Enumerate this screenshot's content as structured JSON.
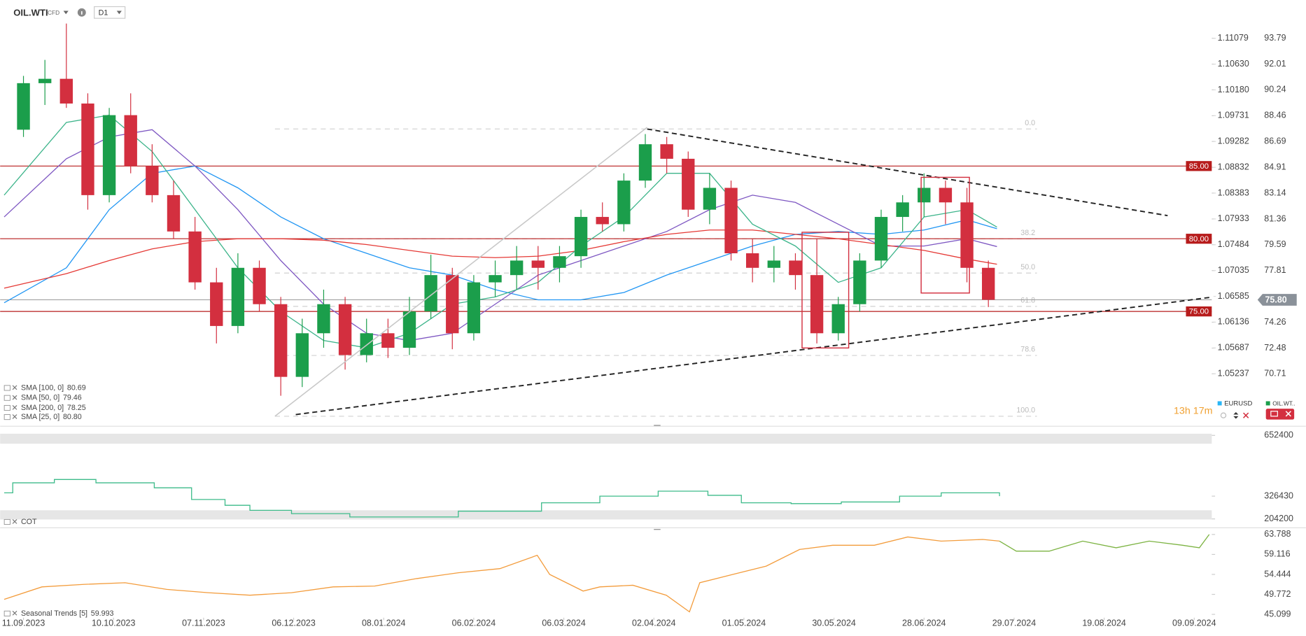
{
  "toolbar": {
    "symbol": "OIL.WTI",
    "badge": "CFD",
    "interval": "D1"
  },
  "countdown": "13h 17m",
  "instrument_legend": [
    {
      "name": "EURUSD",
      "color": "#29b6f6"
    },
    {
      "name": "OIL.WT..",
      "color": "#1b9e4b"
    }
  ],
  "chart_data": [
    {
      "type": "candlestick",
      "xlim": [
        -5.44,
        277.09
      ],
      "ylim": [
        67.22,
        96.42
      ],
      "yticks": [
        93.79,
        92.01,
        90.24,
        88.46,
        86.69,
        84.91,
        83.14,
        81.36,
        79.59,
        77.81,
        74.26,
        72.48,
        70.71
      ],
      "y2lim": [
        1.04352,
        1.11746
      ],
      "y2ticks": [
        1.11079,
        {
          "value": 1.1063,
          "label": "1.10630"
        },
        {
          "value": 1.1018,
          "label": "1.10180"
        },
        1.09731,
        1.09282,
        1.08832,
        1.08383,
        1.07933,
        1.07484,
        1.07035,
        1.06585,
        1.06136,
        1.05687,
        1.05237
      ],
      "candles": {
        "up_color": "#1b9e4b",
        "down_color": "#d32f3f",
        "x": [
          0,
          5,
          10,
          15,
          20,
          25,
          30,
          35,
          40,
          45,
          50,
          55,
          60,
          65,
          70,
          75,
          80,
          85,
          90,
          95,
          100,
          105,
          110,
          115,
          120,
          125,
          130,
          135,
          140,
          145,
          150,
          155,
          160,
          165,
          170,
          175,
          180,
          185,
          190,
          195,
          200,
          205,
          210,
          215,
          220,
          225
        ],
        "open": [
          87.5,
          90.7,
          91.0,
          89.3,
          83.0,
          88.5,
          85.0,
          83.0,
          80.5,
          77.0,
          74.0,
          78.0,
          75.5,
          70.5,
          73.5,
          75.5,
          72.0,
          73.5,
          72.5,
          75.0,
          77.5,
          73.5,
          77.0,
          77.5,
          78.5,
          78.0,
          78.8,
          81.5,
          81.0,
          84.0,
          86.5,
          85.5,
          82.0,
          83.5,
          79.0,
          78.0,
          78.5,
          77.5,
          73.5,
          75.5,
          78.5,
          81.5,
          82.5,
          83.5,
          82.5,
          78.0
        ],
        "high": [
          91.2,
          92.3,
          94.8,
          90.0,
          89.0,
          90.0,
          86.5,
          84.0,
          81.5,
          78.0,
          79.0,
          78.5,
          76.0,
          74.5,
          76.5,
          76.0,
          74.5,
          74.5,
          76.0,
          78.9,
          78.0,
          77.5,
          78.5,
          79.5,
          79.5,
          79.5,
          82.0,
          82.5,
          84.5,
          87.2,
          87.0,
          86.0,
          84.5,
          84.0,
          80.0,
          79.5,
          79.0,
          80.0,
          76.0,
          79.0,
          82.0,
          83.0,
          84.5,
          84.0,
          83.5,
          78.5
        ],
        "low": [
          87.0,
          89.2,
          89.0,
          82.0,
          82.5,
          84.5,
          82.5,
          80.0,
          76.5,
          72.8,
          73.5,
          75.0,
          69.2,
          69.8,
          72.5,
          71.0,
          71.5,
          71.8,
          72.0,
          74.5,
          72.4,
          73.0,
          76.0,
          76.5,
          76.5,
          77.0,
          78.0,
          80.5,
          80.5,
          83.5,
          84.5,
          81.5,
          81.0,
          78.5,
          77.0,
          77.0,
          76.5,
          72.8,
          73.0,
          75.0,
          78.0,
          80.5,
          81.5,
          81.0,
          77.0,
          75.3
        ],
        "close": [
          90.7,
          91.0,
          89.3,
          83.0,
          88.5,
          85.0,
          83.0,
          80.5,
          77.0,
          74.0,
          78.0,
          75.5,
          70.5,
          73.5,
          75.5,
          72.0,
          73.5,
          72.5,
          75.0,
          77.5,
          73.5,
          77.0,
          77.5,
          78.5,
          78.0,
          78.8,
          81.5,
          81.0,
          84.0,
          86.5,
          85.5,
          82.0,
          83.5,
          79.0,
          78.0,
          78.5,
          77.5,
          73.5,
          75.5,
          78.5,
          81.5,
          82.5,
          83.5,
          82.5,
          78.0,
          75.8
        ]
      },
      "series": [
        {
          "name": "SMA [100, 0]",
          "value_label": "80.69",
          "color": "#2196f3",
          "x": [
            -4.5,
            10,
            20,
            30,
            40,
            50,
            60,
            70,
            80,
            90,
            100,
            110,
            120,
            130,
            140,
            150,
            160,
            170,
            180,
            190,
            200,
            210,
            220,
            227
          ],
          "values": [
            75.6,
            78,
            82,
            84.5,
            85,
            83.5,
            81.5,
            80,
            79,
            78,
            77.5,
            76.5,
            75.8,
            75.8,
            76.3,
            77.5,
            78.5,
            79.5,
            80.3,
            80.5,
            80.3,
            80.6,
            81.3,
            80.69
          ]
        },
        {
          "name": "SMA [50, 0]",
          "value_label": "79.46",
          "color": "#7e57c2",
          "x": [
            -4.5,
            10,
            20,
            30,
            40,
            50,
            60,
            70,
            80,
            90,
            100,
            110,
            120,
            130,
            140,
            150,
            160,
            170,
            180,
            190,
            200,
            210,
            220,
            227
          ],
          "values": [
            81.5,
            85.5,
            87,
            87.5,
            85,
            82,
            78.5,
            75.5,
            73.5,
            73,
            73.5,
            75.5,
            77.5,
            78.5,
            79.5,
            80.5,
            82,
            83,
            82.5,
            81,
            79.5,
            79.5,
            80,
            79.46
          ]
        },
        {
          "name": "SMA [200, 0]",
          "value_label": "78.25",
          "color": "#e53935",
          "x": [
            -4.5,
            10,
            20,
            30,
            40,
            50,
            60,
            70,
            80,
            90,
            100,
            110,
            120,
            130,
            140,
            150,
            160,
            170,
            180,
            190,
            200,
            210,
            220,
            227
          ],
          "values": [
            76.6,
            77.6,
            78.5,
            79.3,
            79.8,
            80.0,
            80.0,
            79.9,
            79.6,
            79.2,
            78.8,
            78.7,
            78.8,
            79.2,
            79.8,
            80.3,
            80.6,
            80.6,
            80.3,
            80.0,
            79.6,
            79.2,
            78.6,
            78.25
          ]
        },
        {
          "name": "SMA [25, 0]",
          "value_label": "80.80",
          "color": "#3cb48a",
          "x": [
            -4.5,
            10,
            20,
            30,
            40,
            50,
            60,
            70,
            80,
            90,
            100,
            110,
            120,
            130,
            140,
            150,
            160,
            170,
            180,
            190,
            200,
            210,
            220,
            227
          ],
          "values": [
            83,
            88,
            88.5,
            86,
            82,
            78,
            75,
            73,
            72.5,
            73.5,
            75.5,
            76,
            77,
            79.5,
            81.5,
            84.5,
            84.5,
            81,
            79.5,
            77,
            78,
            81.5,
            82,
            80.8
          ]
        }
      ],
      "levels": {
        "color": "#b71c1c",
        "items": [
          {
            "value": 85,
            "label": "85.00"
          },
          {
            "value": 80,
            "label": "80.00"
          },
          {
            "value": 75,
            "label": "75.00"
          }
        ]
      },
      "last_price": {
        "value": 75.8,
        "label": "75.80"
      },
      "fibonacci": [
        {
          "value": 87.55,
          "label": "0.0"
        },
        {
          "value": 79.99,
          "label": "38.2"
        },
        {
          "value": 77.64,
          "label": "50.0"
        },
        {
          "value": 75.35,
          "label": "61.8"
        },
        {
          "value": 71.97,
          "label": "78.6"
        },
        {
          "value": 67.79,
          "label": "100.0"
        }
      ]
    },
    {
      "type": "line",
      "title": "COT",
      "step": true,
      "xlim": [
        -5.44,
        277.09
      ],
      "ylim": [
        187984,
        688176
      ],
      "yticks": [
        652400,
        326430,
        204200
      ],
      "series": [
        {
          "color": "#3dbb8a",
          "x": [
            -4.5,
            -2.5,
            7.2,
            16.9,
            30.5,
            39.2,
            47,
            52.8,
            62.5,
            76.1,
            89.7,
            101.4,
            113,
            120.8,
            134.4,
            148,
            159.6,
            167.4,
            179,
            190.7,
            204.3,
            214,
            227.6
          ],
          "values": [
            344300,
            397900,
            415800,
            397900,
            371100,
            308600,
            277300,
            250500,
            232600,
            214800,
            214800,
            246000,
            246000,
            290700,
            326400,
            353200,
            330900,
            290700,
            286200,
            295200,
            326400,
            344300,
            326400
          ]
        }
      ]
    },
    {
      "type": "line",
      "title": "Seasonal Trends [5]",
      "title_value": 59.993,
      "xlim": [
        -5.44,
        277.09
      ],
      "ylim": [
        44.32,
        65.74
      ],
      "yticks": [
        63.788,
        59.116,
        54.444,
        49.772,
        45.099
      ],
      "xticks": [
        {
          "value": 0,
          "label": "11.09.2023"
        },
        {
          "value": 21,
          "label": "10.10.2023"
        },
        {
          "value": 42,
          "label": "07.11.2023"
        },
        {
          "value": 63,
          "label": "06.12.2023"
        },
        {
          "value": 84,
          "label": "08.01.2024"
        },
        {
          "value": 105,
          "label": "06.02.2024"
        },
        {
          "value": 126,
          "label": "06.03.2024"
        },
        {
          "value": 147,
          "label": "02.04.2024"
        },
        {
          "value": 168,
          "label": "01.05.2024"
        },
        {
          "value": 189,
          "label": "30.05.2024"
        },
        {
          "value": 210,
          "label": "28.06.2024"
        },
        {
          "value": 231,
          "label": "29.07.2024"
        },
        {
          "value": 252,
          "label": "19.08.2024"
        },
        {
          "value": 273,
          "label": "09.09.2024"
        }
      ],
      "series": [
        {
          "color": "#f39c3c",
          "x": [
            -4.5,
            4.3,
            14,
            23.7,
            33.4,
            43.1,
            52.8,
            62.5,
            72.2,
            81.9,
            91.7,
            101.4,
            111.1,
            119.8,
            122.7,
            130.5,
            134.4,
            142.1,
            149.9,
            155.3,
            157.7,
            165.4,
            173.2,
            181,
            188.7,
            198.4,
            206.2,
            214,
            223.7,
            227.6
          ],
          "values": [
            48.6,
            51.52,
            52.11,
            52.5,
            50.94,
            50.16,
            49.58,
            50.16,
            51.52,
            51.72,
            53.47,
            54.83,
            55.8,
            58.92,
            54.44,
            50.55,
            51.52,
            51.91,
            49.58,
            45.68,
            52.5,
            54.44,
            56.39,
            60.28,
            61.26,
            61.26,
            63.2,
            62.23,
            62.62,
            62.23
          ]
        },
        {
          "color": "#7cb342",
          "x": [
            227.6,
            231.5,
            239.2,
            247,
            254.8,
            262.5,
            270.3,
            274.2,
            276.5
          ],
          "values": [
            62.23,
            59.89,
            59.89,
            62.23,
            60.67,
            62.23,
            61.26,
            60.67,
            63.79
          ]
        }
      ]
    }
  ]
}
